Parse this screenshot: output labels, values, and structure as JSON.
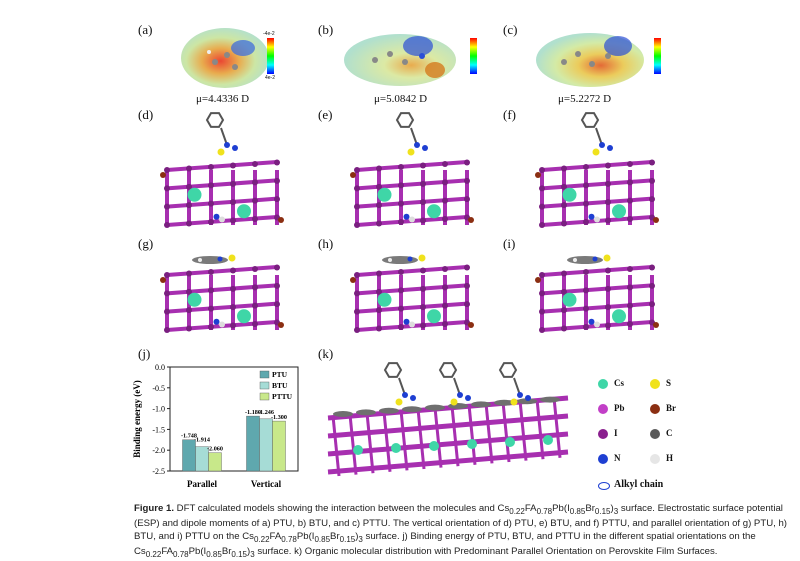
{
  "labels": {
    "a": "(a)",
    "b": "(b)",
    "c": "(c)",
    "d": "(d)",
    "e": "(e)",
    "f": "(f)",
    "g": "(g)",
    "h": "(h)",
    "i": "(i)",
    "j": "(j)",
    "k": "(k)"
  },
  "dipoles": [
    "μ=4.4336 D",
    "μ=5.0842 D",
    "μ=5.2272 D"
  ],
  "esp_scale": {
    "top": "-4e-2",
    "bottom": "4e-2"
  },
  "chart_data": {
    "type": "bar",
    "categories": [
      "Parallel",
      "Vertical"
    ],
    "series": [
      {
        "name": "PTU",
        "values": [
          -1.748,
          -1.18
        ],
        "color": "#5fa8ae"
      },
      {
        "name": "BTU",
        "values": [
          -1.914,
          -1.246
        ],
        "color": "#a6dcd6"
      },
      {
        "name": "PTTU",
        "values": [
          -2.06,
          -1.3
        ],
        "color": "#c8e88a"
      }
    ],
    "value_labels": [
      [
        "-1.748",
        "-1.914",
        "-2.060"
      ],
      [
        "-1.180",
        "-1.246",
        "-1.300"
      ]
    ],
    "ylabel": "Binding energy (eV)",
    "ylim": [
      -2.5,
      0
    ],
    "yticks": [
      "-2.5",
      "-2.0",
      "-1.5",
      "-1.0",
      "-0.5",
      "0.0"
    ],
    "legend": "top-right"
  },
  "legend_k": {
    "items": [
      {
        "label": "Cs",
        "color": "#3fd6a7"
      },
      {
        "label": "S",
        "color": "#f0e21c"
      },
      {
        "label": "Pb",
        "color": "#c23fc7"
      },
      {
        "label": "Br",
        "color": "#8b2f12"
      },
      {
        "label": "I",
        "color": "#8a1f8e"
      },
      {
        "label": "C",
        "color": "#5a5a5a"
      },
      {
        "label": "N",
        "color": "#1e3fd2"
      },
      {
        "label": "H",
        "color": "#e6e6e6"
      }
    ],
    "alkyl": "Alkyl chain"
  },
  "caption": {
    "fig": "Figure 1.",
    "text1": "DFT calculated models showing the interaction between the molecules and Cs",
    "text2": "surface. Electrostatic surface potential (ESP) and dipole moments of a) PTU, b) BTU, and c) PTTU. The vertical orientation of d) PTU, e) BTU, and f) PTTU, and parallel orientation of g) PTU, h) BTU, and i) PTTU on the Cs",
    "text3": "surface. j) Binding energy of PTU, BTU, and PTTU in the different spatial orientations on the Cs",
    "text4": "surface. k) Organic molecular distribution with Predominant Parallel Orientation on Perovskite Film Surfaces."
  }
}
